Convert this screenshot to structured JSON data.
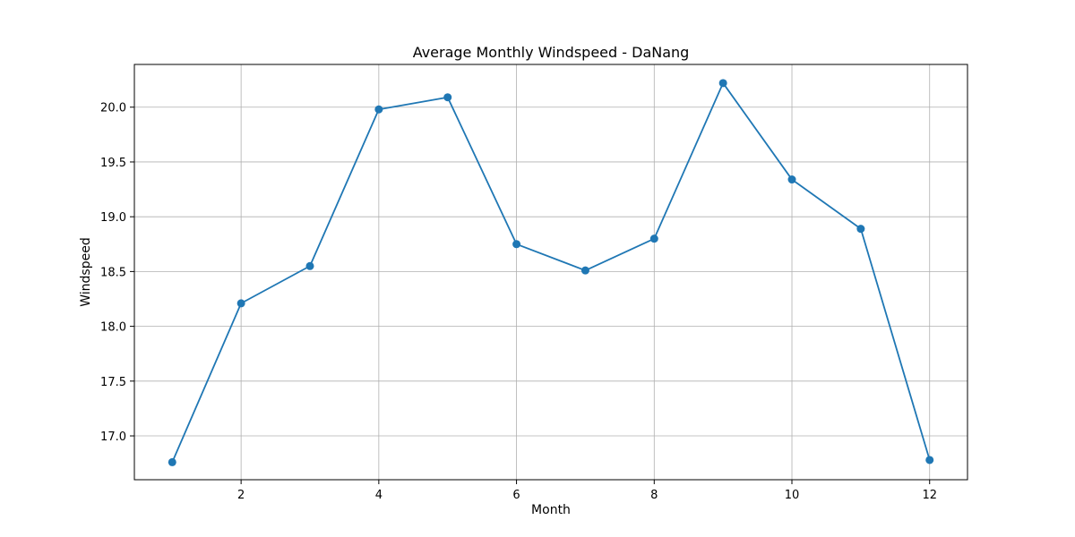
{
  "chart_data": {
    "type": "line",
    "title": "Average Monthly Windspeed - DaNang",
    "xlabel": "Month",
    "ylabel": "Windspeed",
    "x": [
      1,
      2,
      3,
      4,
      5,
      6,
      7,
      8,
      9,
      10,
      11,
      12
    ],
    "series": [
      {
        "values": [
          16.76,
          18.21,
          18.55,
          19.98,
          20.09,
          18.75,
          18.51,
          18.8,
          20.22,
          19.34,
          18.89,
          16.78
        ],
        "color": "#1f77b4",
        "marker": "circle"
      }
    ],
    "xlim": [
      0.45,
      12.55
    ],
    "ylim": [
      16.6,
      20.39
    ],
    "xticks": [
      2,
      4,
      6,
      8,
      10,
      12
    ],
    "xtick_labels": [
      "2",
      "4",
      "6",
      "8",
      "10",
      "12"
    ],
    "yticks": [
      17.0,
      17.5,
      18.0,
      18.5,
      19.0,
      19.5,
      20.0
    ],
    "ytick_labels": [
      "17.0",
      "17.5",
      "18.0",
      "18.5",
      "19.0",
      "19.5",
      "20.0"
    ],
    "grid": true,
    "legend": "none"
  }
}
